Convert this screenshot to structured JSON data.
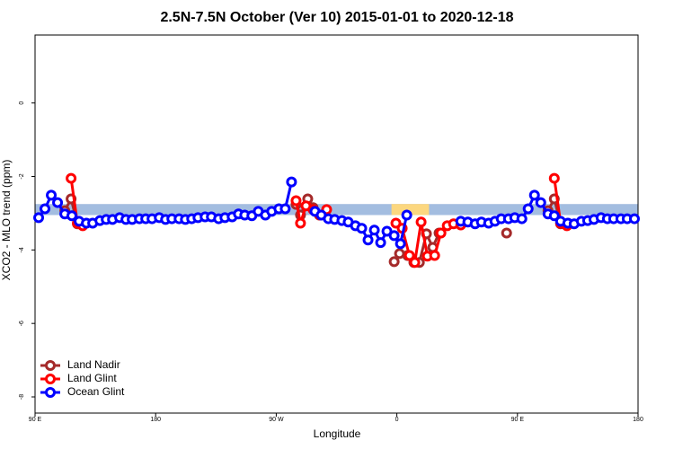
{
  "chart_data": {
    "type": "line",
    "title": "2.5N-7.5N October (Ver 10)   2015-01-01 to 2020-12-18",
    "xlabel": "Longitude",
    "ylabel": "XCO2 - MLO trend (ppm)",
    "xlim": [
      90,
      540
    ],
    "ylim": [
      -8.44,
      1.85
    ],
    "xticks": [
      {
        "value": 90,
        "label": "90 E"
      },
      180,
      {
        "value": 270,
        "label": "90 W"
      },
      {
        "value": 360,
        "label": "0"
      },
      {
        "value": 450,
        "label": "90 E"
      },
      {
        "value": 540,
        "label": "180"
      }
    ],
    "yticks": [
      0,
      -2,
      -4,
      -6,
      -8
    ],
    "legend": "bottom-left",
    "bands": [
      {
        "color": "#a3bde0",
        "x": [
          90,
          540
        ],
        "y": [
          -3.05,
          -2.75
        ]
      },
      {
        "color": "#fcd77f",
        "x": [
          356,
          384
        ],
        "y": [
          -3.05,
          -2.75
        ]
      }
    ],
    "series": [
      {
        "name": "Land Nadir",
        "color": "#a52a2a",
        "x": [
          112.2,
          116.9,
          121.6,
          null,
          284.8,
          288.1,
          293.5,
          297.5,
          302.2,
          null,
          358.0,
          362.0,
          368.0,
          372.7,
          376.8,
          382.1,
          386.8,
          391.5,
          null,
          441.9,
          null,
          472.8,
          477.5,
          482.2
        ],
        "values": [
          -2.93,
          -2.61,
          -3.29,
          null,
          -2.76,
          -3.05,
          -2.61,
          -2.85,
          -3.05,
          null,
          -4.32,
          -4.1,
          -4.15,
          -4.34,
          -4.34,
          -3.56,
          -3.93,
          -3.54,
          null,
          -3.54,
          null,
          -2.93,
          -2.61,
          -3.29
        ]
      },
      {
        "name": "Land Glint",
        "color": "#ff0000",
        "x": [
          116.9,
          121.6,
          125.6,
          null,
          284.8,
          288.1,
          292.2,
          297.5,
          302.9,
          307.6,
          null,
          359.3,
          364.0,
          369.4,
          373.4,
          378.1,
          382.8,
          388.2,
          392.9,
          397.6,
          402.3,
          407.7,
          null,
          477.5,
          482.2,
          486.9
        ],
        "values": [
          -2.05,
          -3.27,
          -3.34,
          null,
          -2.66,
          -3.27,
          -2.8,
          -2.9,
          -3.05,
          -2.9,
          null,
          -3.27,
          -3.41,
          -4.15,
          -4.34,
          -3.24,
          -4.17,
          -4.15,
          -3.54,
          -3.34,
          -3.29,
          -3.32,
          null,
          -2.05,
          -3.27,
          -3.34
        ]
      },
      {
        "name": "Ocean Glint",
        "color": "#0000ff",
        "x": [
          92.7,
          97.4,
          102.1,
          106.8,
          112.2,
          117.5,
          122.9,
          128.3,
          133.0,
          138.4,
          143.1,
          147.8,
          153.1,
          157.8,
          162.5,
          167.9,
          172.6,
          177.3,
          182.7,
          187.4,
          192.1,
          197.5,
          202.2,
          206.9,
          211.6,
          216.9,
          221.6,
          227.0,
          231.7,
          237.1,
          241.8,
          246.5,
          251.8,
          256.6,
          261.9,
          266.6,
          272.0,
          276.7,
          281.4,
          null,
          298.9,
          303.6,
          308.9,
          313.6,
          319.0,
          323.7,
          329.1,
          333.8,
          338.5,
          343.2,
          347.9,
          352.6,
          358.0,
          362.7,
          367.4,
          null,
          407.7,
          413.0,
          418.4,
          423.1,
          428.5,
          433.2,
          437.9,
          443.3,
          448.0,
          453.3,
          458.0,
          462.7,
          467.4,
          472.8,
          477.5,
          482.2,
          487.6,
          492.3,
          497.7,
          502.4,
          507.1,
          512.4,
          517.1,
          521.8,
          527.2,
          531.9,
          537.3
        ],
        "values": [
          -3.12,
          -2.88,
          -2.51,
          -2.71,
          -3.02,
          -3.07,
          -3.22,
          -3.27,
          -3.27,
          -3.2,
          -3.17,
          -3.17,
          -3.12,
          -3.17,
          -3.17,
          -3.15,
          -3.15,
          -3.15,
          -3.12,
          -3.17,
          -3.15,
          -3.15,
          -3.17,
          -3.15,
          -3.12,
          -3.1,
          -3.1,
          -3.15,
          -3.12,
          -3.1,
          -3.02,
          -3.05,
          -3.07,
          -2.95,
          -3.05,
          -2.95,
          -2.88,
          -2.88,
          -2.15,
          null,
          -2.95,
          -3.05,
          -3.15,
          -3.17,
          -3.2,
          -3.24,
          -3.34,
          -3.41,
          -3.73,
          -3.46,
          -3.8,
          -3.49,
          -3.61,
          -3.83,
          -3.05,
          null,
          -3.22,
          -3.24,
          -3.29,
          -3.24,
          -3.27,
          -3.22,
          -3.15,
          -3.15,
          -3.12,
          -3.15,
          -2.88,
          -2.51,
          -2.71,
          -3.02,
          -3.07,
          -3.22,
          -3.27,
          -3.29,
          -3.22,
          -3.2,
          -3.17,
          -3.12,
          -3.15,
          -3.15,
          -3.15,
          -3.15,
          -3.15
        ]
      }
    ]
  }
}
